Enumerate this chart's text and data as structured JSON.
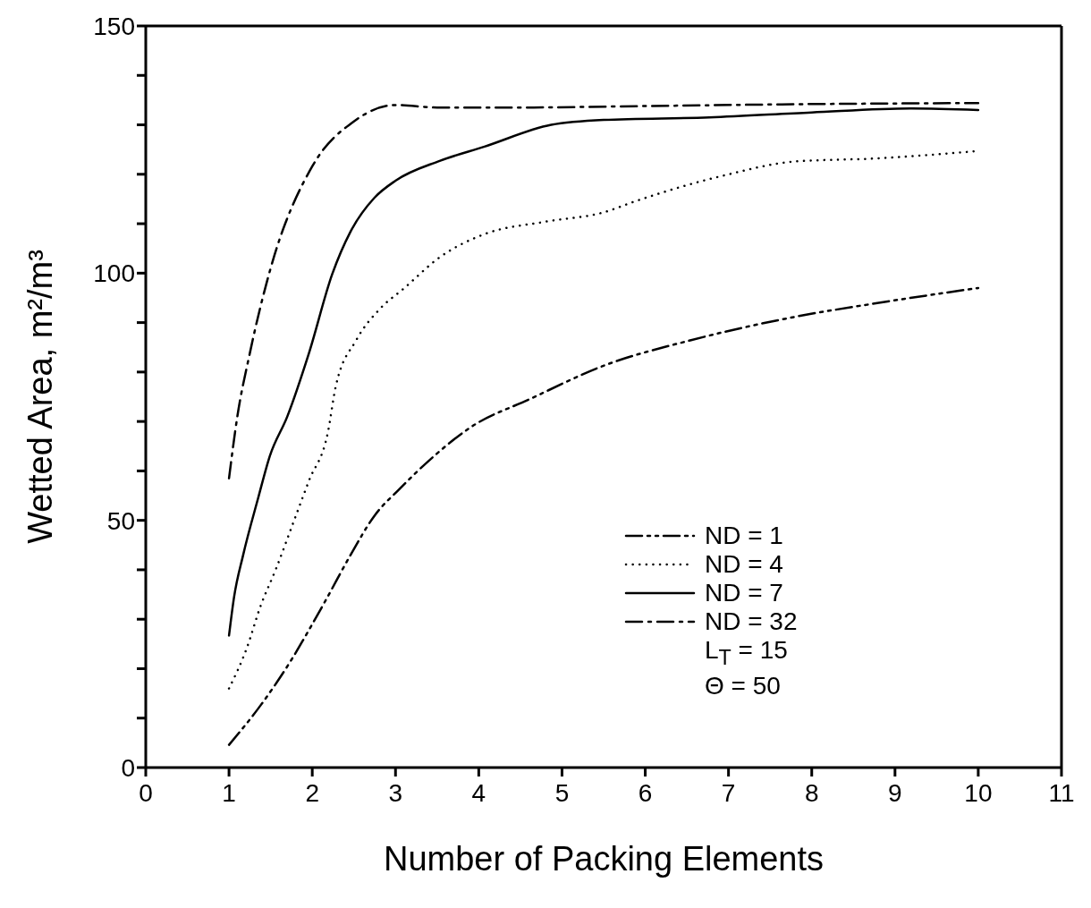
{
  "chart_data": {
    "type": "line",
    "xlabel": "Number of Packing Elements",
    "ylabel": "Wetted Area, m²/m³",
    "xlim": [
      0,
      11
    ],
    "xticks": [
      0,
      1,
      2,
      3,
      4,
      5,
      6,
      7,
      8,
      9,
      10,
      11
    ],
    "ylim": [
      0,
      150
    ],
    "yticks": [
      0,
      {
        "value": 10,
        "label": null
      },
      {
        "value": 20,
        "label": null
      },
      {
        "value": 30,
        "label": null
      },
      {
        "value": 40,
        "label": null
      },
      50,
      {
        "value": 60,
        "label": null
      },
      {
        "value": 70,
        "label": null
      },
      {
        "value": 80,
        "label": null
      },
      {
        "value": 90,
        "label": null
      },
      100,
      {
        "value": 110,
        "label": null
      },
      {
        "value": 120,
        "label": null
      },
      {
        "value": 130,
        "label": null
      },
      {
        "value": 140,
        "label": null
      },
      150
    ],
    "grid": false,
    "legend": "right",
    "marker": "none",
    "series": [
      {
        "name": "ND = 1",
        "color": "#000000",
        "line_style": "dashdotdot",
        "x": [
          1.0,
          1.38,
          1.75,
          1.99,
          2.18,
          2.46,
          2.75,
          3.04,
          3.47,
          3.9,
          4.61,
          5.52,
          6.54,
          7.81,
          8.77,
          10.0
        ],
        "values": [
          4.6,
          12.6,
          21.8,
          28.7,
          34.4,
          43,
          51,
          56.2,
          63.1,
          68.8,
          74.5,
          81.4,
          86.4,
          91.2,
          93.9,
          97
        ]
      },
      {
        "name": "ND = 4",
        "color": "#000000",
        "line_style": "dotted",
        "x": [
          1.0,
          1.21,
          1.38,
          1.56,
          1.78,
          1.96,
          2.19,
          2.28,
          2.53,
          2.82,
          3.1,
          3.53,
          4.07,
          4.8,
          5.5,
          5.89,
          6.93,
          7.81,
          8.77,
          10.0
        ],
        "values": [
          16,
          24,
          32.7,
          40,
          49.9,
          58,
          68,
          76.9,
          86.5,
          92.9,
          96.9,
          103.2,
          107.9,
          110.4,
          112.3,
          114.6,
          119.7,
          122.6,
          123.2,
          124.7
        ]
      },
      {
        "name": "ND = 7",
        "color": "#000000",
        "line_style": "solid",
        "x": [
          1.0,
          1.06,
          1.17,
          1.35,
          1.49,
          1.7,
          1.96,
          2.24,
          2.46,
          2.75,
          3.0,
          3.53,
          4.07,
          4.87,
          5.5,
          6.77,
          8.0,
          9.2,
          10.0
        ],
        "values": [
          26.7,
          34.4,
          43,
          54.5,
          63,
          71,
          83.8,
          99.8,
          108.4,
          115.3,
          118.7,
          122.7,
          125.6,
          130,
          131,
          131.5,
          132.5,
          133.3,
          133
        ]
      },
      {
        "name": "ND = 32",
        "color": "#000000",
        "line_style": "dashdot",
        "x": [
          1.0,
          1.1,
          1.25,
          1.5,
          2.0,
          2.5,
          3.0,
          3.5,
          4.5,
          6.0,
          8.0,
          10.0
        ],
        "values": [
          58.5,
          71,
          83.8,
          101,
          121.6,
          130.7,
          134,
          133.5,
          133.5,
          133.8,
          134.2,
          134.4
        ]
      }
    ],
    "annotations": [
      "L$_{T}$ = 15",
      "Θ = 50"
    ]
  }
}
